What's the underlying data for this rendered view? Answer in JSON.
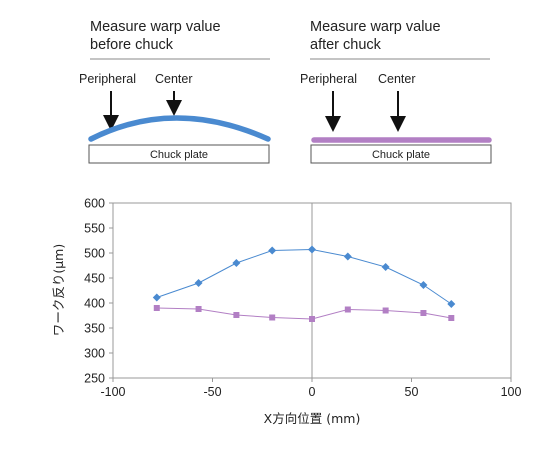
{
  "panels": {
    "before": {
      "title_line1": "Measure warp value",
      "title_line2": "before chuck",
      "peripheral_label": "Peripheral",
      "center_label": "Center",
      "plate_label": "Chuck plate"
    },
    "after": {
      "title_line1": "Measure warp value",
      "title_line2": "after chuck",
      "peripheral_label": "Peripheral",
      "center_label": "Center",
      "plate_label": "Chuck plate"
    },
    "colors": {
      "before_wafer": "#4a8ad0",
      "after_wafer": "#b27fc4",
      "plate_border": "#555555",
      "arrow": "#111111"
    }
  },
  "chart_data": {
    "type": "line",
    "xlabel": "X方向位置 (mm)",
    "ylabel": "ワーク反り(μm)",
    "xlim": [
      -100,
      100
    ],
    "ylim": [
      250,
      600
    ],
    "xticks": [
      -100,
      -50,
      0,
      50,
      100
    ],
    "yticks": [
      250,
      300,
      350,
      400,
      450,
      500,
      550,
      600
    ],
    "grid": "vertical-center-line",
    "legend": "none",
    "series": [
      {
        "color": "#4a8ad0",
        "marker": "diamond",
        "x": [
          -78,
          -57,
          -38,
          -20,
          0,
          18,
          37,
          56,
          70
        ],
        "y": [
          411,
          440,
          480,
          505,
          507,
          493,
          472,
          436,
          398
        ]
      },
      {
        "color": "#b27fc4",
        "marker": "square",
        "x": [
          -78,
          -57,
          -38,
          -20,
          0,
          18,
          37,
          56,
          70
        ],
        "y": [
          390,
          388,
          376,
          371,
          368,
          387,
          385,
          380,
          370
        ]
      }
    ]
  }
}
